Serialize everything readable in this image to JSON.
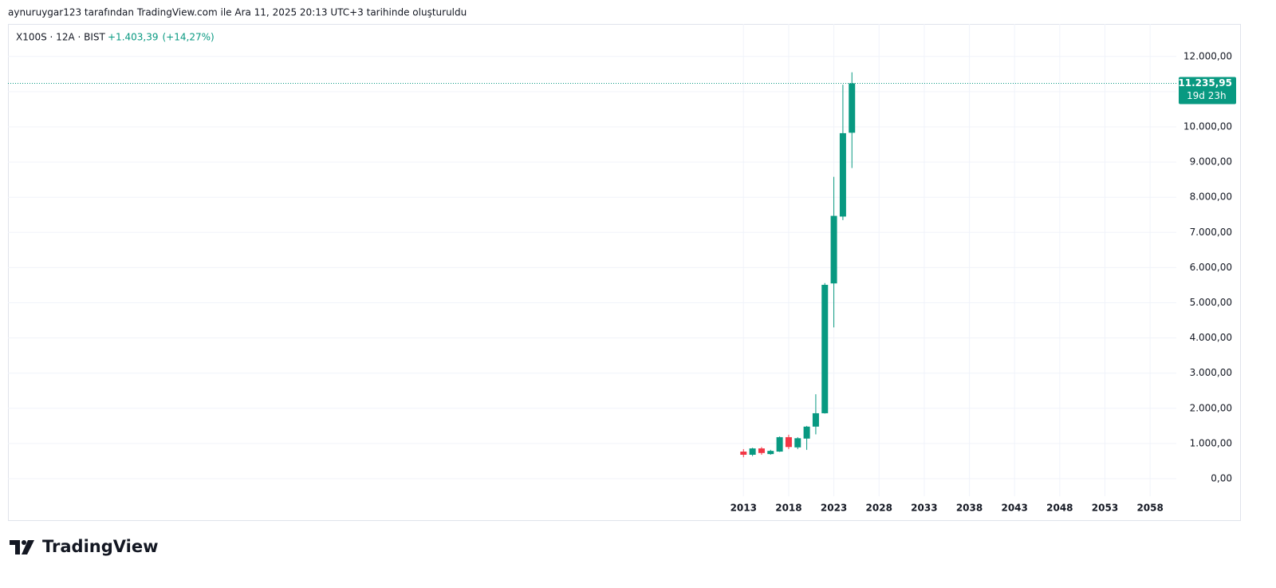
{
  "header": "aynuruygar123 tarafından TradingView.com ile Ara 11, 2025 20:13 UTC+3 tarihinde oluşturuldu",
  "brand": "TradingView",
  "chart_data": {
    "type": "candlestick",
    "symbol": "X100S · 12A · BIST",
    "change": {
      "value": 1403.39,
      "label": "+1.403,39"
    },
    "change_pct": {
      "value": 14.27,
      "label": "(+14,27%)"
    },
    "last_price": {
      "value": 11235.95,
      "label": "11.235,95"
    },
    "countdown": "19d 23h",
    "x": [
      2013,
      2014,
      2015,
      2016,
      2017,
      2018,
      2019,
      2020,
      2021,
      2022,
      2023,
      2024,
      2025
    ],
    "open": [
      770,
      680,
      860,
      700,
      770,
      1180,
      890,
      1140,
      1480,
      1860,
      5550,
      7450,
      9832.56
    ],
    "high": [
      840,
      880,
      900,
      820,
      1200,
      1250,
      1180,
      1500,
      2400,
      5560,
      8580,
      11200,
      11550
    ],
    "low": [
      610,
      640,
      680,
      680,
      760,
      840,
      840,
      820,
      1260,
      1850,
      4300,
      7350,
      8830
    ],
    "close": [
      680,
      860,
      730,
      790,
      1180,
      900,
      1150,
      1480,
      1860,
      5510,
      7470,
      9820,
      11235.95
    ],
    "up_color": "#089981",
    "down_color": "#f23645",
    "xlim": [
      1931.6,
      2060.9
    ],
    "xticks": [
      2013,
      2018,
      2023,
      2028,
      2033,
      2038,
      2043,
      2048,
      2053,
      2058
    ],
    "ylim": [
      -1134,
      12925
    ],
    "yticks": [
      {
        "value": 0,
        "label": "0,00"
      },
      {
        "value": 1000,
        "label": "1.000,00"
      },
      {
        "value": 2000,
        "label": "2.000,00"
      },
      {
        "value": 3000,
        "label": "3.000,00"
      },
      {
        "value": 4000,
        "label": "4.000,00"
      },
      {
        "value": 5000,
        "label": "5.000,00"
      },
      {
        "value": 6000,
        "label": "6.000,00"
      },
      {
        "value": 7000,
        "label": "7.000,00"
      },
      {
        "value": 8000,
        "label": "8.000,00"
      },
      {
        "value": 9000,
        "label": "9.000,00"
      },
      {
        "value": 10000,
        "label": "10.000,00"
      },
      {
        "value": 11000,
        "label": "11.000,00"
      },
      {
        "value": 12000,
        "label": "12.000,00"
      }
    ],
    "grid": true
  }
}
